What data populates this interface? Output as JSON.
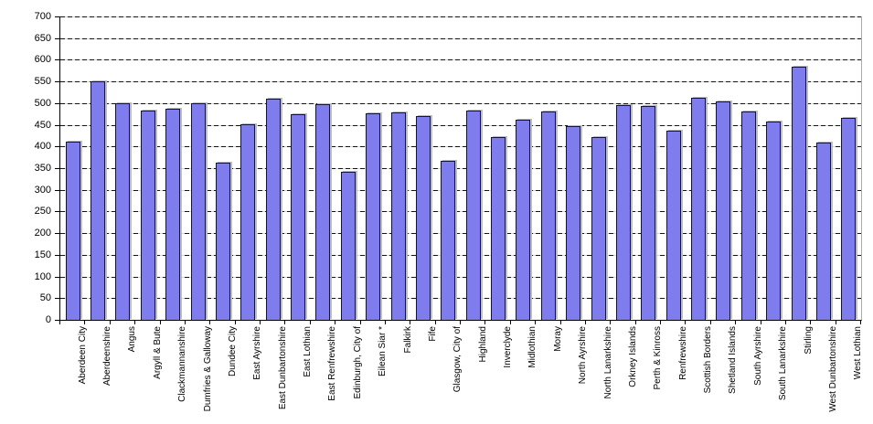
{
  "chart_data": {
    "type": "bar",
    "title": "",
    "xlabel": "",
    "ylabel": "",
    "categories": [
      "Aberdeen City",
      "Aberdeenshire",
      "Angus",
      "Argyll & Bute",
      "Clackmannanshire",
      "Dumfries & Galloway",
      "Dundee City",
      "East Ayrshire",
      "East Dunbartonshire",
      "East Lothian",
      "East Renfrewshire",
      "Edinburgh, City of",
      "Eilean Siar *",
      "Falkirk",
      "Fife",
      "Glasgow, City of",
      "Highland",
      "Inverclyde",
      "Midlothian",
      "Moray",
      "North Ayrshire",
      "North Lanarkshire",
      "Orkney Islands",
      "Perth & Kinross",
      "Renfrewshire",
      "Scottish Borders",
      "Shetland Islands",
      "South Ayrshire",
      "South Lanarkshire",
      "Stirling",
      "West Dunbartonshire",
      "West Lothian"
    ],
    "values": [
      411,
      551,
      499,
      482,
      486,
      500,
      363,
      451,
      511,
      474,
      498,
      342,
      476,
      479,
      470,
      367,
      483,
      421,
      462,
      480,
      448,
      422,
      495,
      494,
      437,
      513,
      503,
      481,
      457,
      583,
      409,
      467
    ],
    "ylim": [
      0,
      700
    ],
    "ytick_interval": 50,
    "grid": "horizontal-dashed",
    "legend": "none",
    "colors": {
      "bar_fill": "#7f7dee",
      "bar_border": "#13133f",
      "bar_shadow": "#bdbdbd",
      "axis": "#000000",
      "plot_right_border": "#ababab",
      "background": "#ffffff",
      "text": "#000000"
    }
  }
}
